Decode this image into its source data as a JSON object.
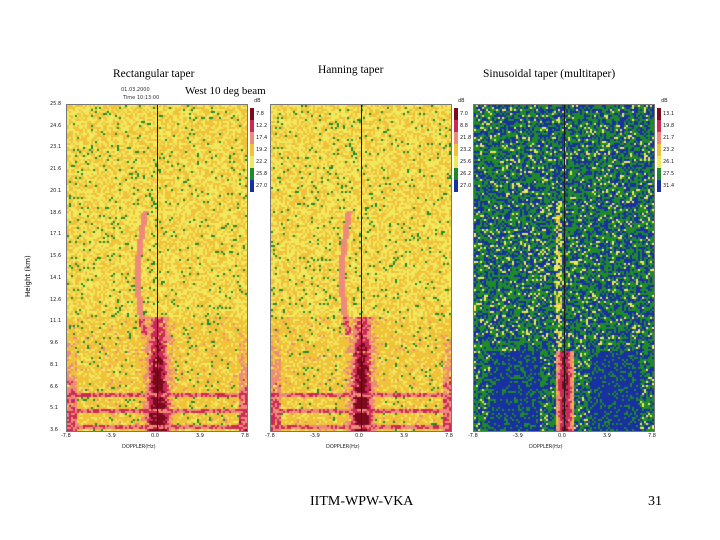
{
  "slide": {
    "footer_text": "IITM-WPW-VKA",
    "page_number": "31"
  },
  "header": {
    "date_line_1": "01.03.2000",
    "date_line_2": "Time 10:13:00",
    "beam_label": "West 10 deg beam",
    "y_axis_label": "Height (km)"
  },
  "chart_data": [
    {
      "type": "heatmap",
      "title": "Rectangular taper",
      "xlabel": "DOPPLER(Hz)",
      "ylabel": "Height (km)",
      "x_ticks": [
        "-7.8",
        "-3.9",
        "0.0",
        "3.9",
        "7.8"
      ],
      "y_ticks": [
        "3.6",
        "5.1",
        "6.6",
        "8.1",
        "9.6",
        "11.1",
        "12.6",
        "14.1",
        "15.6",
        "17.1",
        "18.6",
        "20.1",
        "21.6",
        "23.1",
        "24.6",
        "25.8"
      ],
      "colorbar_unit": "dB",
      "colorbar_ticks": [
        "7.8",
        "12.2",
        "17.4",
        "19.2",
        "22.2",
        "25.8",
        "27.0"
      ],
      "colorscale": [
        "#1830a0",
        "#1f8a2a",
        "#f2e85c",
        "#f0c23a",
        "#ee8a7a",
        "#cc2a56",
        "#7a0a1c"
      ]
    },
    {
      "type": "heatmap",
      "title": "Hanning taper",
      "xlabel": "DOPPLER(Hz)",
      "ylabel": "",
      "x_ticks": [
        "-7.8",
        "-3.9",
        "0.0",
        "3.9",
        "7.8"
      ],
      "y_ticks": [
        "3.6",
        "5.1",
        "6.6",
        "8.1",
        "9.6",
        "11.1",
        "12.6",
        "14.1",
        "15.6",
        "17.1",
        "18.6",
        "20.1",
        "21.6",
        "23.1",
        "24.6",
        "25.8"
      ],
      "colorbar_unit": "dB",
      "colorbar_ticks": [
        "7.0",
        "8.8",
        "21.8",
        "23.2",
        "25.6",
        "26.2",
        "27.0"
      ],
      "colorscale": [
        "#1830a0",
        "#1f8a2a",
        "#f2e85c",
        "#f0c23a",
        "#ee8a7a",
        "#cc2a56",
        "#7a0a1c"
      ]
    },
    {
      "type": "heatmap",
      "title": "Sinusoidal taper    (multitaper)",
      "xlabel": "DOPPLER(Hz)",
      "ylabel": "",
      "x_ticks": [
        "-7.8",
        "-3.9",
        "0.0",
        "3.9",
        "7.8"
      ],
      "y_ticks": [
        "3.6",
        "5.1",
        "6.6",
        "8.1",
        "9.6",
        "11.1",
        "12.6",
        "14.1",
        "15.6",
        "17.1",
        "18.6",
        "20.1",
        "21.6",
        "23.1",
        "24.6",
        "25.8"
      ],
      "colorbar_unit": "dB",
      "colorbar_ticks": [
        "13.1",
        "19.8",
        "21.7",
        "23.2",
        "26.1",
        "27.5",
        "31.4"
      ],
      "colorscale": [
        "#1830a0",
        "#1f8a2a",
        "#f2e85c",
        "#f0c23a",
        "#ee8a7a",
        "#cc2a56",
        "#7a0a1c"
      ]
    }
  ]
}
